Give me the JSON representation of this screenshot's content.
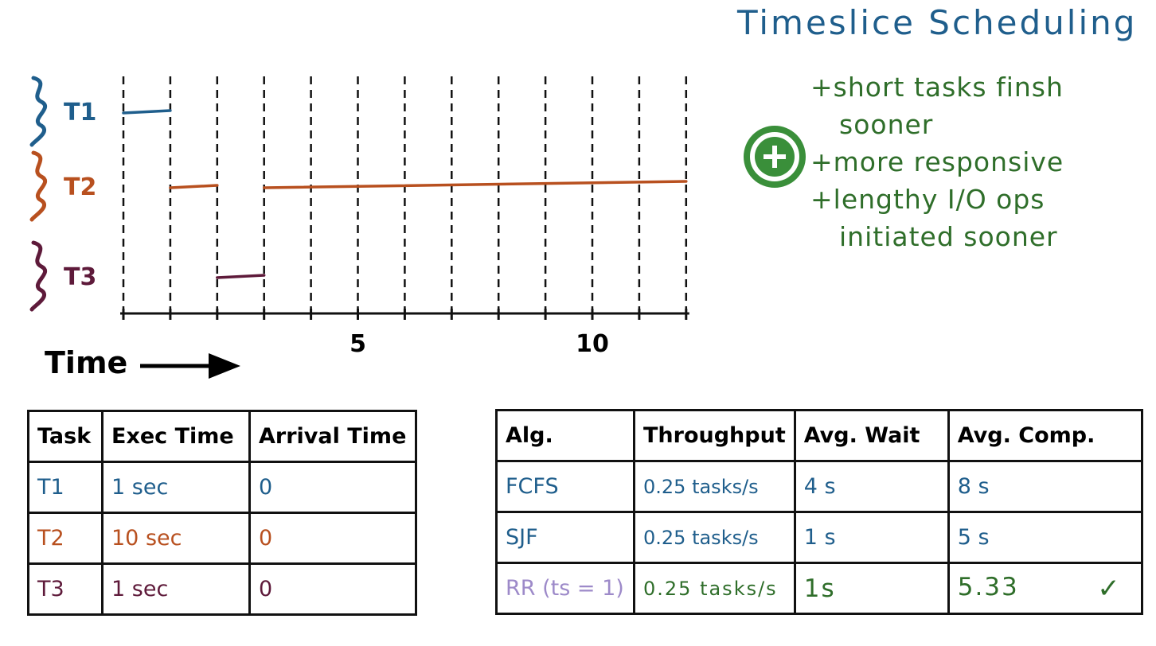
{
  "title": "Timeslice Scheduling",
  "chart_data": {
    "type": "gantt",
    "tasks": [
      {
        "name": "T1",
        "color": "#1f5e8c",
        "segments": [
          [
            0,
            1
          ]
        ]
      },
      {
        "name": "T2",
        "color": "#b8501f",
        "segments": [
          [
            1,
            2
          ],
          [
            3,
            12
          ]
        ]
      },
      {
        "name": "T3",
        "color": "#5e1a3a",
        "segments": [
          [
            2,
            3
          ]
        ]
      }
    ],
    "xlim": [
      0,
      12
    ],
    "tick_labels": [
      {
        "x": 5,
        "label": "5"
      },
      {
        "x": 10,
        "label": "10"
      }
    ],
    "xlabel": "Time"
  },
  "notes": {
    "badge_symbol": "+",
    "badge_color": "#3a8f3a",
    "lines": [
      "+short tasks finsh",
      "sooner",
      "+more responsive",
      "+lengthy I/O ops",
      "initiated sooner"
    ]
  },
  "task_table": {
    "headers": [
      "Task",
      "Exec Time",
      "Arrival Time"
    ],
    "rows": [
      [
        "T1",
        "1 sec",
        "0"
      ],
      [
        "T2",
        "10 sec",
        "0"
      ],
      [
        "T3",
        "1 sec",
        "0"
      ]
    ]
  },
  "alg_table": {
    "headers": [
      "Alg.",
      "Throughput",
      "Avg. Wait",
      "Avg. Comp."
    ],
    "rows": [
      [
        "FCFS",
        "0.25 tasks/s",
        "4 s",
        "8 s"
      ],
      [
        "SJF",
        "0.25 tasks/s",
        "1 s",
        "5 s"
      ],
      [
        "RR (ts = 1)",
        "0.25 tasks/s",
        "1s",
        "5.33"
      ]
    ],
    "checkmark": "✓"
  }
}
